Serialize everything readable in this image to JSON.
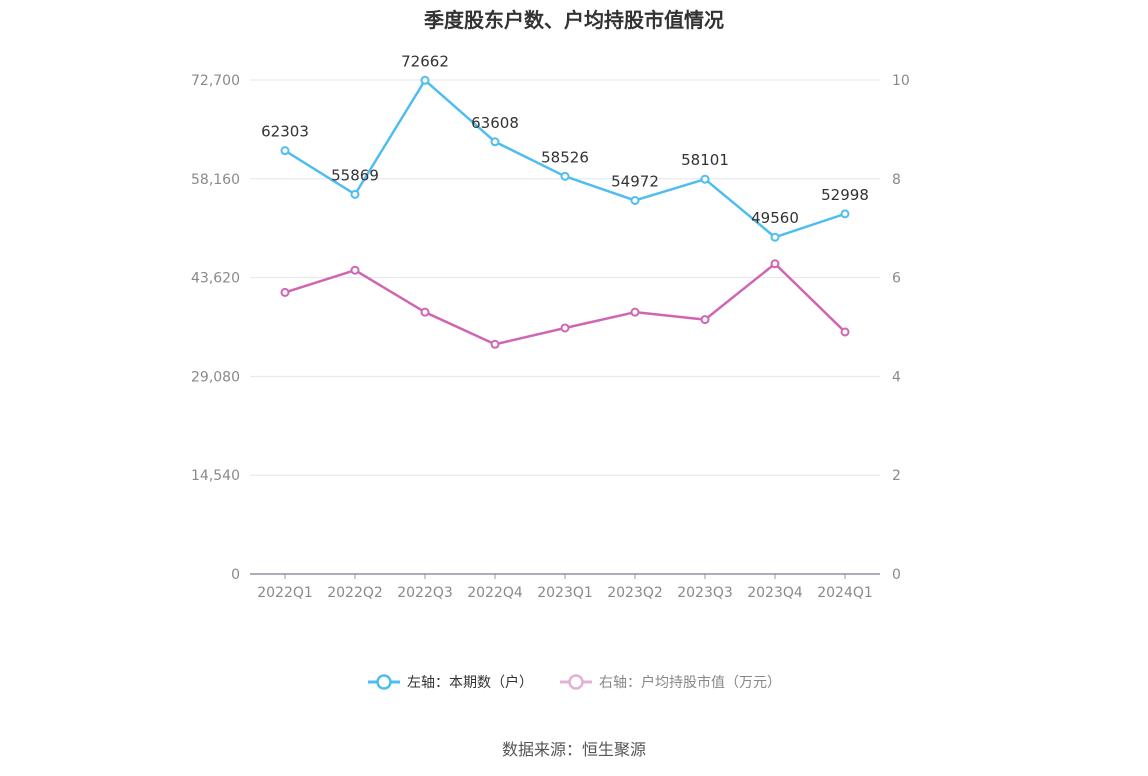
{
  "chart_data": {
    "type": "line",
    "title": "季度股东户数、户均持股市值情况",
    "categories": [
      "2022Q1",
      "2022Q2",
      "2022Q3",
      "2022Q4",
      "2023Q1",
      "2023Q2",
      "2023Q3",
      "2023Q4",
      "2024Q1"
    ],
    "left_axis": {
      "ticks": [
        "0",
        "14,540",
        "29,080",
        "43,620",
        "58,160",
        "72,700"
      ],
      "min": 0,
      "max": 72700
    },
    "right_axis": {
      "ticks": [
        "0",
        "2",
        "4",
        "6",
        "8",
        "10"
      ],
      "min": 0,
      "max": 10
    },
    "series": [
      {
        "name": "左轴：本期数（户）",
        "axis": "left",
        "color": "#4fbdf0",
        "values": [
          62303,
          55869,
          72662,
          63608,
          58526,
          54972,
          58101,
          49560,
          52998
        ],
        "labels": [
          "62303",
          "55869",
          "72662",
          "63608",
          "58526",
          "54972",
          "58101",
          "49560",
          "52998"
        ]
      },
      {
        "name": "右轴：户均持股市值（万元）",
        "axis": "right",
        "color": "#d066b3",
        "values": [
          5.7,
          6.15,
          5.3,
          4.65,
          4.98,
          5.3,
          5.15,
          6.28,
          4.9
        ]
      }
    ],
    "grid": true,
    "legend_position": "bottom"
  },
  "source": "数据来源：恒生聚源"
}
